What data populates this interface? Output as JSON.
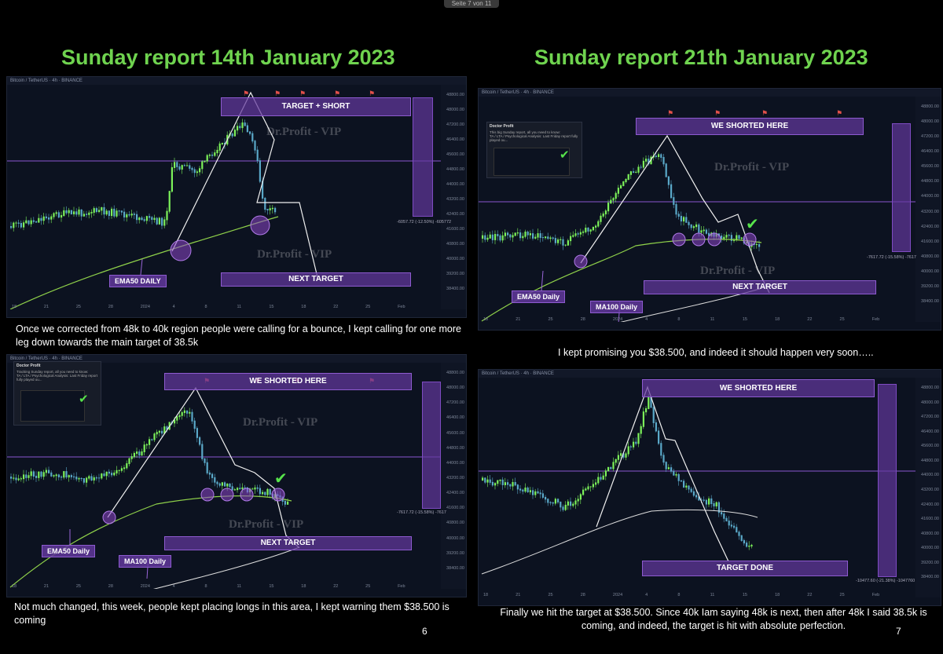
{
  "viewer": {
    "page_indicator": "Seite 7 von 11"
  },
  "titles": {
    "left": "Sunday report 14th January 2023",
    "right": "Sunday report 21th January 2023"
  },
  "panels": {
    "p1": {
      "box_top": "TARGET + SHORT",
      "box_bottom": "NEXT TARGET",
      "ema": "EMA50 DAILY",
      "watermark": "Dr.Profit - VIP",
      "range_label": "-6057.72 (-12.50%) -605772",
      "toolbar": "Bitcoin / TetherUS · 4h · BINANCE"
    },
    "p2": {
      "box_top": "WE SHORTED HERE",
      "box_bottom": "NEXT TARGET",
      "ema": "EMA50 Daily",
      "ma": "MA100 Daily",
      "watermark": "Dr.Profit - VIP",
      "range_label": "-7617.72 (-15.58%) -7617",
      "toolbar": "Bitcoin / TetherUS · 4h · BINANCE",
      "inset_header": "Doctor Profit",
      "inset_line1": "This big Sunday report, all you need to know:",
      "inset_line2": "TA / LTA / Psychological Analysis: Last Friday report fully played ou..."
    },
    "p3": {
      "box_top": "WE SHORTED HERE",
      "box_bottom": "NEXT TARGET",
      "ema": "EMA50 Daily",
      "ma": "MA100 Daily",
      "watermark": "Dr.Profit - VIP",
      "range_label": "-7617.72 (-15.58%) -7617",
      "toolbar": "Bitcoin / TetherUS · 4h · BINANCE",
      "inset_header": "Doctor Profit",
      "inset_line1": "Tracking Sunday report, all you need to know:",
      "inset_line2": "TA / LTA / Psychological Analysis: Last Friday report fully played ou..."
    },
    "p4": {
      "box_top": "WE SHORTED HERE",
      "box_bottom": "TARGET DONE",
      "range_label": "-10477.60 (-21.38%) -1047760",
      "toolbar": "Bitcoin / TetherUS · 4h · BINANCE"
    }
  },
  "captions": {
    "c1": "Once we corrected from 48k to 40k region people were calling for a bounce, I kept calling for one more leg down towards the main target of 38.5k",
    "c2": "I kept promising you $38.500, and indeed it should happen very soon…..",
    "c3": "Not much changed, this week, people kept placing longs in this area, I kept warning them $38.500 is coming",
    "c4": "Finally we hit the target at $38.500. Since 40k Iam saying 48k is next, then after 48k I said 38.5k is coming, and indeed, the target is hit with absolute perfection."
  },
  "page_numbers": {
    "left": "6",
    "right": "7"
  },
  "axis_ticks": [
    "48800.00",
    "48000.00",
    "47200.00",
    "46400.00",
    "45600.00",
    "44800.00",
    "44000.00",
    "43200.00",
    "42400.00",
    "41600.00",
    "40800.00",
    "40000.00",
    "39200.00",
    "38400.00"
  ],
  "x_ticks": [
    "18",
    "21",
    "25",
    "28",
    "2024",
    "4",
    "8",
    "11",
    "15",
    "18",
    "22",
    "25",
    "Feb"
  ],
  "colors": {
    "title_green": "#6fd34f",
    "purple": "#62389c",
    "ema_green": "#8fd14a",
    "candle_up": "#7cf25a",
    "candle_down": "#5aa8c8"
  }
}
